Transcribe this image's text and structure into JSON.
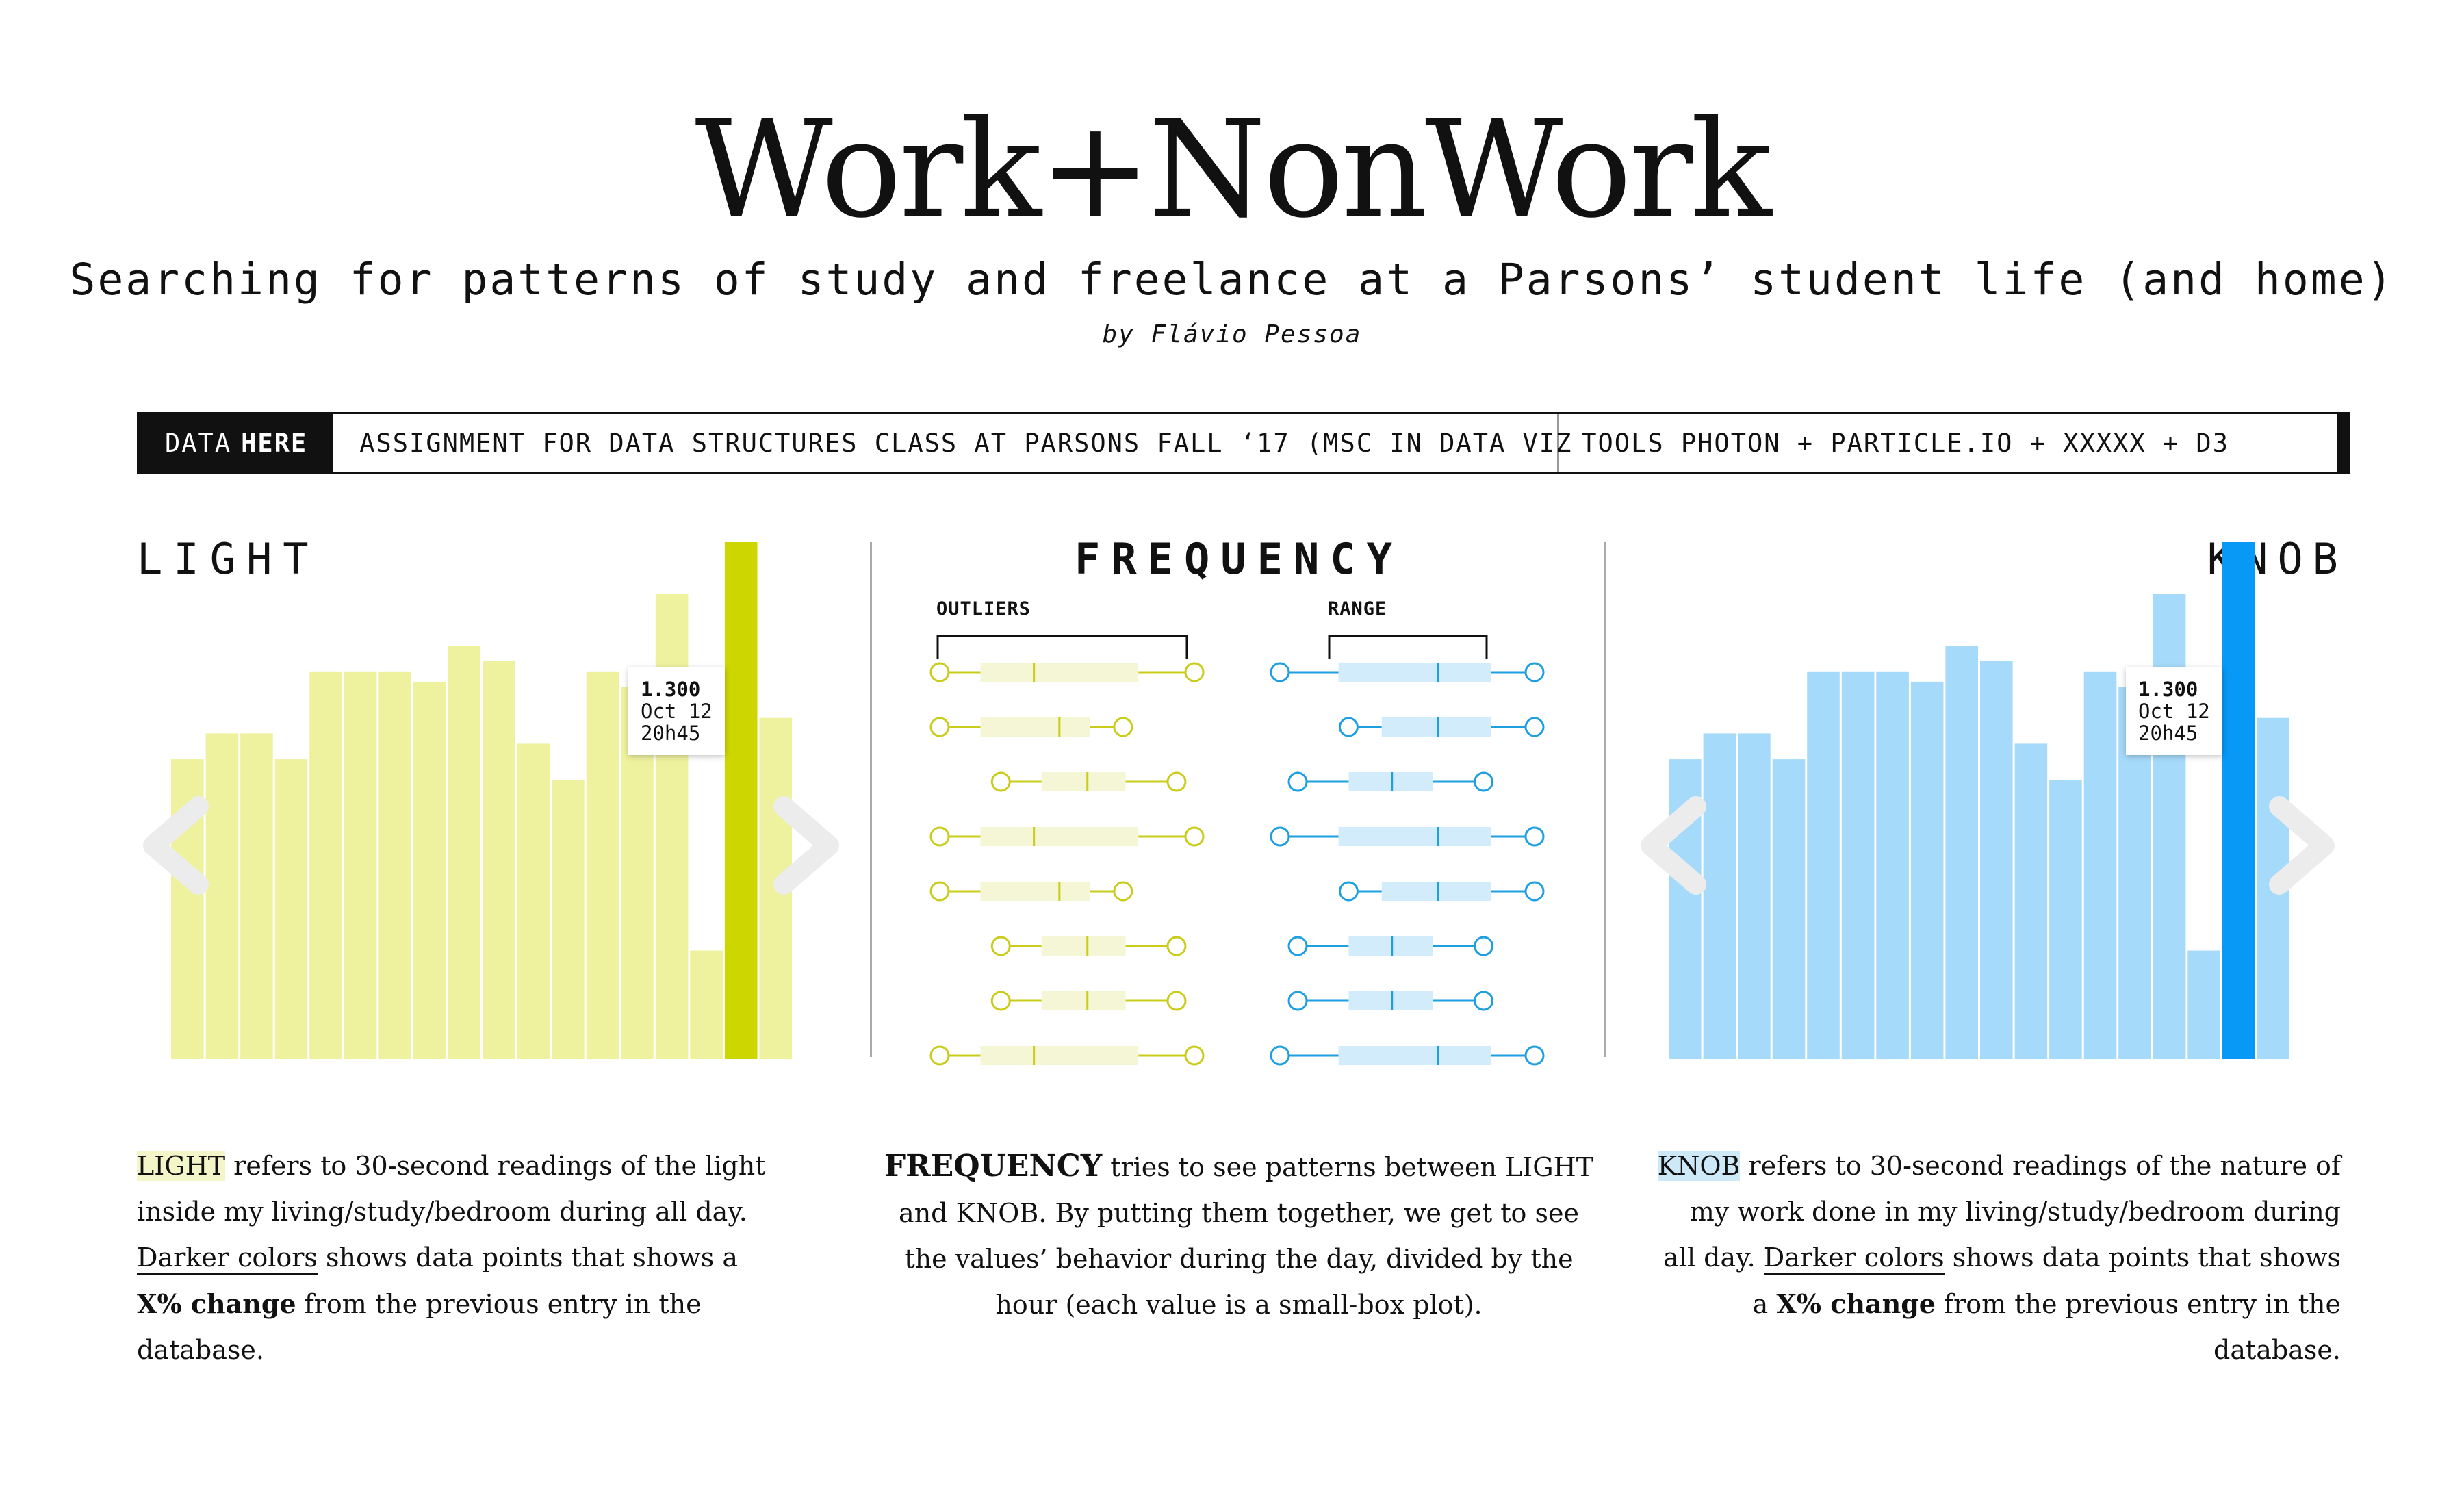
{
  "header": {
    "title": "Work+NonWork",
    "subtitle": "Searching for patterns of study and freelance at a Parsons’ student life (and home)",
    "byline": "by Flávio Pessoa"
  },
  "infobar": {
    "data_label": "DATA",
    "data_strong": "HERE",
    "assignment": "ASSIGNMENT FOR DATA STRUCTURES CLASS AT PARSONS FALL ‘17 (MSC IN DATA VIZ",
    "tools": "TOOLS PHOTON + PARTICLE.IO + XXXXX + D3"
  },
  "panels": {
    "light": {
      "title": "LIGHT"
    },
    "frequency": {
      "title": "FREQUENCY",
      "outliers_label": "OUTLIERS",
      "range_label": "RANGE"
    },
    "knob": {
      "title": "KNOB"
    }
  },
  "tooltips": {
    "light": {
      "value": "1.300",
      "date": "Oct 12",
      "time": "20h45"
    },
    "knob": {
      "value": "1.300",
      "date": "Oct 12",
      "time": "20h45"
    }
  },
  "descriptions": {
    "light": {
      "term": "LIGHT",
      "t1": " refers to 30-second readings of the light inside my living/study/bedroom during all day. ",
      "link": "Darker colors",
      "t2": " shows data points that shows a ",
      "bold": "X% change",
      "t3": " from the previous entry in the database."
    },
    "frequency": {
      "term": "FREQUENCY",
      "t1": " tries to see patterns between LIGHT and KNOB. By putting them together, we get to see the values’ behavior during the day, divided by the hour (each value is a small-box plot)."
    },
    "knob": {
      "term": "KNOB",
      "t1": " refers to 30-second readings of the nature of my work done in my living/study/bedroom during all day. ",
      "link": "Darker colors",
      "t2": " shows data points that shows a ",
      "bold": "X% change",
      "t3": " from the previous entry in the database."
    }
  },
  "colors": {
    "light_bar": "#eef29e",
    "light_highlight": "#cdd600",
    "light_box": "#f4f6d6",
    "light_line": "#c9cc1a",
    "knob_bar": "#a6dafa",
    "knob_highlight": "#0898f5",
    "knob_box": "#d2ecfb",
    "knob_line": "#1e9fe0"
  },
  "chart_data": [
    {
      "type": "bar",
      "series_name": "LIGHT",
      "values": [
        0.58,
        0.63,
        0.63,
        0.58,
        0.75,
        0.75,
        0.75,
        0.73,
        0.8,
        0.77,
        0.61,
        0.54,
        0.75,
        0.72,
        0.9,
        0.21,
        1.0,
        0.66
      ],
      "highlight_index": 16,
      "ylim": [
        0,
        1
      ]
    },
    {
      "type": "bar",
      "series_name": "KNOB",
      "values": [
        0.58,
        0.63,
        0.63,
        0.58,
        0.75,
        0.75,
        0.75,
        0.73,
        0.8,
        0.77,
        0.61,
        0.54,
        0.75,
        0.72,
        0.9,
        0.21,
        1.0,
        0.66
      ],
      "highlight_index": 16,
      "ylim": [
        0,
        1
      ]
    },
    {
      "type": "boxplot",
      "series_name": "LIGHT",
      "xlim": [
        0,
        1
      ],
      "rows": [
        {
          "min": 0.0,
          "q1": 0.16,
          "median": 0.37,
          "q3": 0.78,
          "max": 1.0
        },
        {
          "min": 0.0,
          "q1": 0.16,
          "median": 0.47,
          "q3": 0.59,
          "max": 0.72
        },
        {
          "min": 0.24,
          "q1": 0.4,
          "median": 0.58,
          "q3": 0.73,
          "max": 0.93
        },
        {
          "min": 0.0,
          "q1": 0.16,
          "median": 0.37,
          "q3": 0.78,
          "max": 1.0
        },
        {
          "min": 0.0,
          "q1": 0.16,
          "median": 0.47,
          "q3": 0.59,
          "max": 0.72
        },
        {
          "min": 0.24,
          "q1": 0.4,
          "median": 0.58,
          "q3": 0.73,
          "max": 0.93
        },
        {
          "min": 0.24,
          "q1": 0.4,
          "median": 0.58,
          "q3": 0.73,
          "max": 0.93
        },
        {
          "min": 0.0,
          "q1": 0.16,
          "median": 0.37,
          "q3": 0.78,
          "max": 1.0
        }
      ]
    },
    {
      "type": "boxplot",
      "series_name": "KNOB",
      "xlim": [
        0,
        1
      ],
      "rows": [
        {
          "min": 0.0,
          "q1": 0.23,
          "median": 0.62,
          "q3": 0.83,
          "max": 1.0
        },
        {
          "min": 0.27,
          "q1": 0.4,
          "median": 0.62,
          "q3": 0.83,
          "max": 1.0
        },
        {
          "min": 0.07,
          "q1": 0.27,
          "median": 0.44,
          "q3": 0.6,
          "max": 0.8
        },
        {
          "min": 0.0,
          "q1": 0.23,
          "median": 0.62,
          "q3": 0.83,
          "max": 1.0
        },
        {
          "min": 0.27,
          "q1": 0.4,
          "median": 0.62,
          "q3": 0.83,
          "max": 1.0
        },
        {
          "min": 0.07,
          "q1": 0.27,
          "median": 0.44,
          "q3": 0.6,
          "max": 0.8
        },
        {
          "min": 0.07,
          "q1": 0.27,
          "median": 0.44,
          "q3": 0.6,
          "max": 0.8
        },
        {
          "min": 0.0,
          "q1": 0.23,
          "median": 0.62,
          "q3": 0.83,
          "max": 1.0
        }
      ]
    }
  ]
}
